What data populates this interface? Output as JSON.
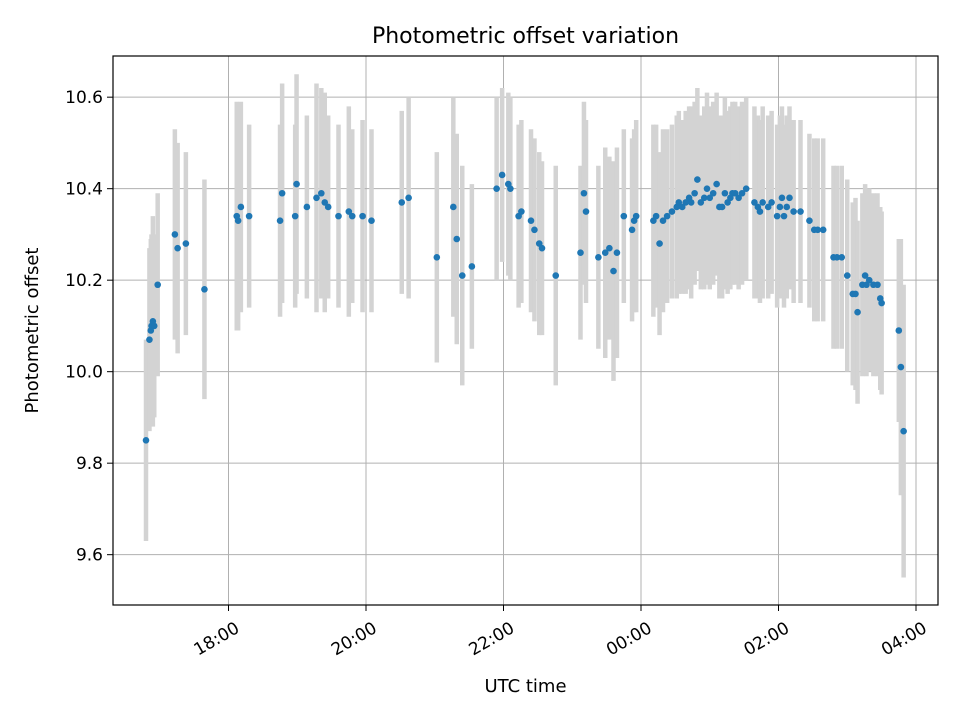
{
  "chart_data": {
    "type": "scatter",
    "title": "Photometric offset variation",
    "xlabel": "UTC time",
    "ylabel": "Photometric offset",
    "x_unit": "hours since 00:00 UTC (negative = previous evening)",
    "xlim": [
      -7.68,
      4.32
    ],
    "ylim": [
      9.49,
      10.69
    ],
    "x_ticks": [
      {
        "value": -6,
        "label": "18:00"
      },
      {
        "value": -4,
        "label": "20:00"
      },
      {
        "value": -2,
        "label": "22:00"
      },
      {
        "value": 0,
        "label": "00:00"
      },
      {
        "value": 2,
        "label": "02:00"
      },
      {
        "value": 4,
        "label": "04:00"
      }
    ],
    "y_ticks": [
      {
        "value": 9.6,
        "label": "9.6"
      },
      {
        "value": 9.8,
        "label": "9.8"
      },
      {
        "value": 10.0,
        "label": "10.0"
      },
      {
        "value": 10.2,
        "label": "10.2"
      },
      {
        "value": 10.4,
        "label": "10.4"
      },
      {
        "value": 10.6,
        "label": "10.6"
      }
    ],
    "grid": true,
    "marker_color": "#1f77b4",
    "errorbar_color": "#d3d3d3",
    "series": [
      {
        "name": "offset",
        "points": [
          [
            -7.2,
            9.85,
            0.22
          ],
          [
            -7.15,
            10.07,
            0.2
          ],
          [
            -7.13,
            10.09,
            0.2
          ],
          [
            -7.12,
            10.1,
            0.2
          ],
          [
            -7.1,
            10.11,
            0.23
          ],
          [
            -7.08,
            10.1,
            0.2
          ],
          [
            -7.03,
            10.19,
            0.2
          ],
          [
            -6.78,
            10.3,
            0.23
          ],
          [
            -6.74,
            10.27,
            0.23
          ],
          [
            -6.62,
            10.28,
            0.2
          ],
          [
            -6.35,
            10.18,
            0.24
          ],
          [
            -5.88,
            10.34,
            0.25
          ],
          [
            -5.86,
            10.33,
            0.24
          ],
          [
            -5.82,
            10.36,
            0.23
          ],
          [
            -5.7,
            10.34,
            0.2
          ],
          [
            -5.25,
            10.33,
            0.21
          ],
          [
            -5.22,
            10.39,
            0.24
          ],
          [
            -5.03,
            10.34,
            0.2
          ],
          [
            -5.01,
            10.41,
            0.24
          ],
          [
            -4.86,
            10.36,
            0.2
          ],
          [
            -4.72,
            10.38,
            0.25
          ],
          [
            -4.65,
            10.39,
            0.23
          ],
          [
            -4.6,
            10.37,
            0.24
          ],
          [
            -4.55,
            10.36,
            0.2
          ],
          [
            -4.4,
            10.34,
            0.2
          ],
          [
            -4.25,
            10.35,
            0.23
          ],
          [
            -4.2,
            10.34,
            0.19
          ],
          [
            -4.05,
            10.34,
            0.21
          ],
          [
            -3.92,
            10.33,
            0.2
          ],
          [
            -3.48,
            10.37,
            0.2
          ],
          [
            -3.38,
            10.38,
            0.22
          ],
          [
            -2.97,
            10.25,
            0.23
          ],
          [
            -2.73,
            10.36,
            0.24
          ],
          [
            -2.68,
            10.29,
            0.23
          ],
          [
            -2.6,
            10.21,
            0.24
          ],
          [
            -2.46,
            10.23,
            0.18
          ],
          [
            -2.1,
            10.4,
            0.2
          ],
          [
            -2.02,
            10.43,
            0.19
          ],
          [
            -1.93,
            10.41,
            0.2
          ],
          [
            -1.9,
            10.4,
            0.2
          ],
          [
            -1.78,
            10.34,
            0.2
          ],
          [
            -1.74,
            10.35,
            0.2
          ],
          [
            -1.6,
            10.33,
            0.2
          ],
          [
            -1.55,
            10.31,
            0.2
          ],
          [
            -1.48,
            10.28,
            0.2
          ],
          [
            -1.44,
            10.27,
            0.19
          ],
          [
            -1.24,
            10.21,
            0.24
          ],
          [
            -0.88,
            10.26,
            0.19
          ],
          [
            -0.83,
            10.39,
            0.2
          ],
          [
            -0.8,
            10.35,
            0.2
          ],
          [
            -0.62,
            10.25,
            0.2
          ],
          [
            -0.52,
            10.26,
            0.23
          ],
          [
            -0.46,
            10.27,
            0.2
          ],
          [
            -0.4,
            10.22,
            0.24
          ],
          [
            -0.35,
            10.26,
            0.23
          ],
          [
            -0.25,
            10.34,
            0.19
          ],
          [
            -0.13,
            10.31,
            0.2
          ],
          [
            -0.1,
            10.33,
            0.2
          ],
          [
            -0.07,
            10.34,
            0.21
          ],
          [
            0.18,
            10.33,
            0.21
          ],
          [
            0.22,
            10.34,
            0.2
          ],
          [
            0.27,
            10.28,
            0.2
          ],
          [
            0.32,
            10.33,
            0.2
          ],
          [
            0.38,
            10.34,
            0.19
          ],
          [
            0.45,
            10.35,
            0.19
          ],
          [
            0.52,
            10.36,
            0.2
          ],
          [
            0.55,
            10.37,
            0.2
          ],
          [
            0.6,
            10.36,
            0.19
          ],
          [
            0.65,
            10.37,
            0.2
          ],
          [
            0.7,
            10.38,
            0.2
          ],
          [
            0.73,
            10.37,
            0.21
          ],
          [
            0.78,
            10.39,
            0.2
          ],
          [
            0.82,
            10.42,
            0.2
          ],
          [
            0.87,
            10.37,
            0.19
          ],
          [
            0.92,
            10.38,
            0.2
          ],
          [
            0.96,
            10.4,
            0.21
          ],
          [
            1.0,
            10.38,
            0.2
          ],
          [
            1.05,
            10.39,
            0.2
          ],
          [
            1.1,
            10.41,
            0.2
          ],
          [
            1.14,
            10.36,
            0.2
          ],
          [
            1.18,
            10.36,
            0.2
          ],
          [
            1.22,
            10.39,
            0.21
          ],
          [
            1.26,
            10.37,
            0.2
          ],
          [
            1.3,
            10.38,
            0.2
          ],
          [
            1.33,
            10.39,
            0.2
          ],
          [
            1.37,
            10.39,
            0.2
          ],
          [
            1.42,
            10.38,
            0.2
          ],
          [
            1.47,
            10.39,
            0.2
          ],
          [
            1.53,
            10.4,
            0.2
          ],
          [
            1.65,
            10.37,
            0.21
          ],
          [
            1.7,
            10.36,
            0.2
          ],
          [
            1.73,
            10.35,
            0.2
          ],
          [
            1.77,
            10.37,
            0.21
          ],
          [
            1.85,
            10.36,
            0.2
          ],
          [
            1.9,
            10.37,
            0.2
          ],
          [
            1.98,
            10.34,
            0.2
          ],
          [
            2.02,
            10.36,
            0.2
          ],
          [
            2.05,
            10.38,
            0.2
          ],
          [
            2.08,
            10.34,
            0.2
          ],
          [
            2.12,
            10.36,
            0.2
          ],
          [
            2.16,
            10.38,
            0.2
          ],
          [
            2.22,
            10.35,
            0.2
          ],
          [
            2.32,
            10.35,
            0.2
          ],
          [
            2.45,
            10.33,
            0.19
          ],
          [
            2.52,
            10.31,
            0.2
          ],
          [
            2.57,
            10.31,
            0.2
          ],
          [
            2.65,
            10.31,
            0.2
          ],
          [
            2.8,
            10.25,
            0.2
          ],
          [
            2.85,
            10.25,
            0.2
          ],
          [
            2.92,
            10.25,
            0.2
          ],
          [
            3.0,
            10.21,
            0.21
          ],
          [
            3.08,
            10.17,
            0.2
          ],
          [
            3.12,
            10.17,
            0.21
          ],
          [
            3.15,
            10.13,
            0.2
          ],
          [
            3.22,
            10.19,
            0.2
          ],
          [
            3.26,
            10.21,
            0.2
          ],
          [
            3.28,
            10.19,
            0.2
          ],
          [
            3.32,
            10.2,
            0.2
          ],
          [
            3.38,
            10.19,
            0.2
          ],
          [
            3.44,
            10.19,
            0.2
          ],
          [
            3.48,
            10.16,
            0.2
          ],
          [
            3.5,
            10.15,
            0.2
          ],
          [
            3.75,
            10.09,
            0.2
          ],
          [
            3.78,
            10.01,
            0.28
          ],
          [
            3.82,
            9.87,
            0.32
          ]
        ]
      }
    ]
  }
}
